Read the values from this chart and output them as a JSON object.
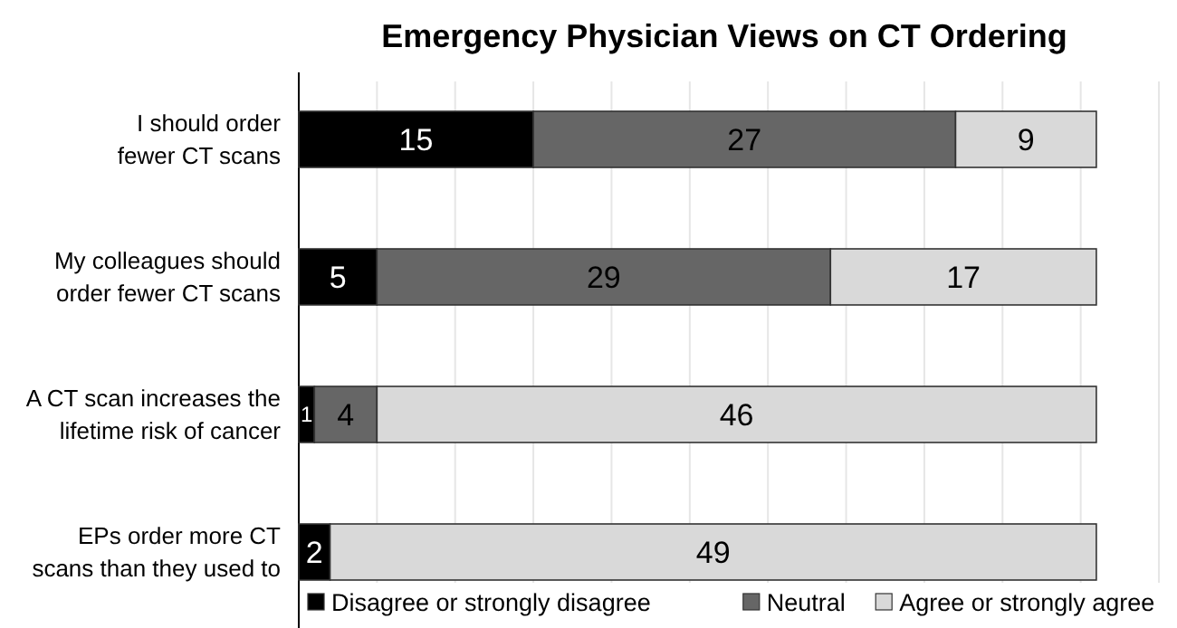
{
  "chart_data": {
    "type": "bar",
    "orientation": "horizontal",
    "stacked": true,
    "title": "Emergency Physician Views on CT Ordering",
    "categories": [
      "I should order fewer CT scans",
      "My colleagues should order fewer CT scans",
      "A CT scan increases the lifetime risk of cancer",
      "EPs order more CT scans than they used to"
    ],
    "series": [
      {
        "name": "Disagree or strongly disagree",
        "color": "#000000",
        "values": [
          15,
          5,
          1,
          2
        ]
      },
      {
        "name": "Neutral",
        "color": "#666666",
        "values": [
          27,
          29,
          4,
          null
        ]
      },
      {
        "name": "Agree or strongly agree",
        "color": "#d9d9d9",
        "values": [
          9,
          17,
          46,
          49
        ]
      }
    ],
    "xlim": [
      0,
      55
    ],
    "xticks": [
      {
        "value": 5,
        "label": null
      },
      {
        "value": 10,
        "label": null
      },
      {
        "value": 15,
        "label": null
      },
      {
        "value": 20,
        "label": null
      },
      {
        "value": 25,
        "label": null
      },
      {
        "value": 30,
        "label": null
      },
      {
        "value": 35,
        "label": null
      },
      {
        "value": 40,
        "label": null
      },
      {
        "value": 45,
        "label": null
      },
      {
        "value": 50,
        "label": null
      },
      {
        "value": 55,
        "label": null
      }
    ],
    "grid": "x",
    "tick_labels": "y",
    "data_labels": true,
    "legend": "bottom"
  }
}
